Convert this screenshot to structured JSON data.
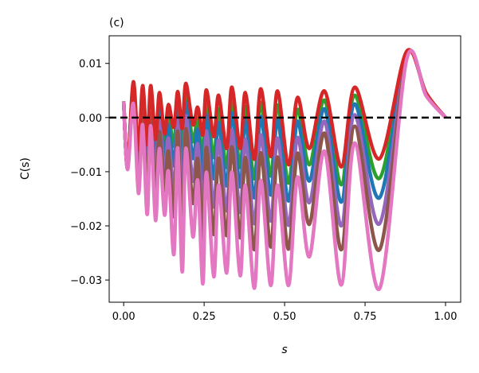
{
  "chart_data": {
    "type": "line",
    "title": "(c)",
    "xlabel": "s",
    "ylabel": "C(s)",
    "xlim": [
      -0.045,
      1.047
    ],
    "ylim": [
      -0.0341,
      0.0151
    ],
    "grid": false,
    "legend": "none",
    "xticks": [
      0.0,
      0.25,
      0.5,
      0.75,
      1.0
    ],
    "xtick_labels": [
      "0.00",
      "0.25",
      "0.50",
      "0.75",
      "1.00"
    ],
    "yticks": [
      0.01,
      0.0,
      -0.01,
      -0.02,
      -0.03
    ],
    "ytick_labels": [
      "0.01",
      "0.00",
      "−0.01",
      "−0.02",
      "−0.03"
    ],
    "reference_line": {
      "y": 0,
      "style": "dashed",
      "color": "#000000"
    },
    "x": [
      0,
      0.012,
      0.03,
      0.046,
      0.059,
      0.073,
      0.084,
      0.099,
      0.111,
      0.127,
      0.139,
      0.156,
      0.168,
      0.182,
      0.193,
      0.215,
      0.23,
      0.246,
      0.257,
      0.28,
      0.295,
      0.32,
      0.336,
      0.362,
      0.378,
      0.406,
      0.426,
      0.457,
      0.478,
      0.512,
      0.54,
      0.577,
      0.624,
      0.676,
      0.718,
      0.795,
      0.879,
      0.94,
      1.0
    ],
    "series": [
      {
        "color": "#2ca02c",
        "values": [
          0.003,
          -0.0091,
          0.006,
          -0.0072,
          0.0048,
          -0.0069,
          0.0048,
          -0.0063,
          0.0031,
          -0.0053,
          0.0006,
          -0.0053,
          0.0032,
          -0.006,
          0.0045,
          -0.0044,
          -0.0001,
          -0.0073,
          0.0028,
          -0.0074,
          0.0016,
          -0.0092,
          0.0032,
          -0.0092,
          0.002,
          -0.0113,
          0.0028,
          -0.0108,
          0.0023,
          -0.0121,
          0.0015,
          -0.0087,
          0.0032,
          -0.0124,
          0.0041,
          -0.0112,
          0.012,
          0.0044,
          0
        ]
      },
      {
        "color": "#1f77b4",
        "values": [
          0.003,
          -0.0092,
          0.0054,
          -0.0084,
          0.0037,
          -0.0089,
          0.0037,
          -0.0085,
          0.0015,
          -0.0075,
          -0.0013,
          -0.0089,
          0.0017,
          -0.01,
          0.0027,
          -0.0075,
          -0.0022,
          -0.0115,
          0.0005,
          -0.0113,
          -0.0009,
          -0.0126,
          0.0009,
          -0.0128,
          -0.0005,
          -0.0148,
          0.0002,
          -0.0143,
          -0.0003,
          -0.0154,
          -0.0007,
          -0.0117,
          0.0016,
          -0.0156,
          0.0025,
          -0.0148,
          0.0118,
          0.0044,
          0
        ]
      },
      {
        "color": "#9467bd",
        "values": [
          0.003,
          -0.0093,
          0.0046,
          -0.01,
          0.0023,
          -0.0115,
          0.0022,
          -0.0115,
          -0.0006,
          -0.0105,
          -0.0038,
          -0.0136,
          -0.0004,
          -0.0153,
          0.0003,
          -0.0117,
          -0.0049,
          -0.017,
          -0.0025,
          -0.0165,
          -0.0042,
          -0.0172,
          -0.0023,
          -0.0175,
          -0.004,
          -0.0196,
          -0.0032,
          -0.0191,
          -0.0038,
          -0.0199,
          -0.0037,
          -0.0157,
          -0.0007,
          -0.02,
          0.0005,
          -0.0196,
          0.0115,
          0.0043,
          0
        ]
      },
      {
        "color": "#8c564b",
        "values": [
          0.003,
          -0.0094,
          0.0038,
          -0.0116,
          0.0009,
          -0.014,
          0.0007,
          -0.0145,
          -0.0026,
          -0.0135,
          -0.0062,
          -0.0183,
          -0.0025,
          -0.0206,
          -0.0021,
          -0.0158,
          -0.0076,
          -0.0225,
          -0.0055,
          -0.0216,
          -0.0075,
          -0.0218,
          -0.0054,
          -0.0222,
          -0.0074,
          -0.0244,
          -0.0065,
          -0.0239,
          -0.0073,
          -0.0243,
          -0.0066,
          -0.0197,
          -0.0029,
          -0.0244,
          -0.0016,
          -0.0244,
          0.0111,
          0.0042,
          0
        ]
      },
      {
        "color": "#d62728",
        "values": [
          0.003,
          -0.009,
          0.0066,
          -0.006,
          0.0059,
          -0.005,
          0.0059,
          -0.004,
          0.0046,
          -0.003,
          0.0024,
          -0.0018,
          0.0048,
          -0.002,
          0.0063,
          -0.0013,
          0.0019,
          -0.0032,
          0.0051,
          -0.0035,
          0.0041,
          -0.0057,
          0.0056,
          -0.0057,
          0.0046,
          -0.0077,
          0.0053,
          -0.0072,
          0.0049,
          -0.0087,
          0.0037,
          -0.0057,
          0.0049,
          -0.0091,
          0.0056,
          -0.0076,
          0.0122,
          0.0045,
          0
        ]
      },
      {
        "color": "#e377c2",
        "values": [
          0.003,
          -0.0096,
          0.0026,
          -0.014,
          -0.0013,
          -0.0179,
          -0.0015,
          -0.019,
          -0.0057,
          -0.018,
          -0.0099,
          -0.0253,
          -0.0056,
          -0.0285,
          -0.0057,
          -0.022,
          -0.0116,
          -0.0307,
          -0.0101,
          -0.0294,
          -0.0125,
          -0.0287,
          -0.0101,
          -0.0292,
          -0.0125,
          -0.0315,
          -0.0116,
          -0.031,
          -0.0125,
          -0.031,
          -0.011,
          -0.0257,
          -0.0062,
          -0.0309,
          -0.0047,
          -0.0316,
          0.0107,
          0.004,
          0
        ]
      }
    ]
  }
}
